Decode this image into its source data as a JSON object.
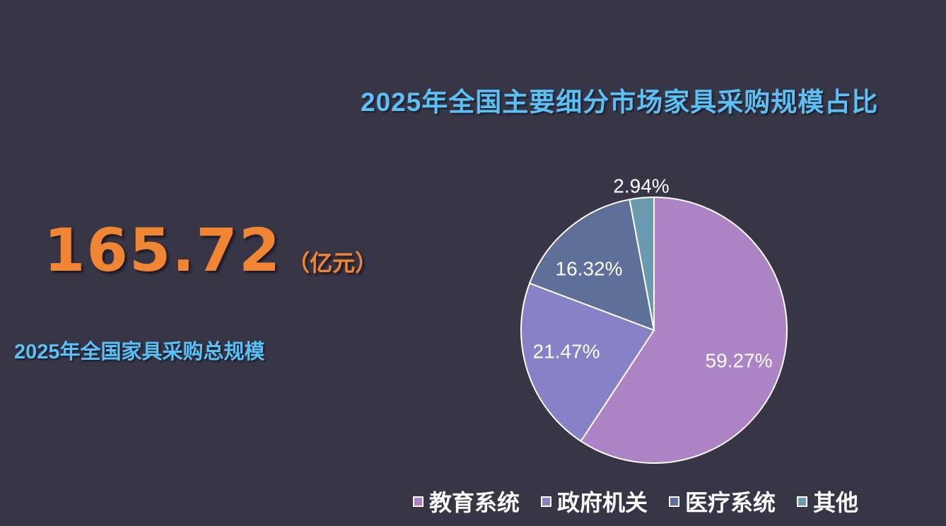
{
  "chart_title": "2025年全国主要细分市场家具采购规模占比",
  "total": {
    "value": "165.72",
    "unit": "（亿元）",
    "label": "2025年全国家具采购总规模"
  },
  "colors": {
    "background": "#383546",
    "title": "#5BC0F5",
    "highlight": "#F08533"
  },
  "chart_data": {
    "type": "pie",
    "title": "2025年全国主要细分市场家具采购规模占比",
    "categories": [
      "教育系统",
      "政府机关",
      "医疗系统",
      "其他"
    ],
    "values": [
      59.27,
      21.47,
      16.32,
      2.94
    ],
    "labels": [
      "59.27%",
      "21.47%",
      "16.32%",
      "2.94%"
    ],
    "colors": [
      "#AC84C6",
      "#8782C8",
      "#5E6F99",
      "#6A9AB0"
    ],
    "legend_position": "bottom",
    "unit": "%"
  },
  "legend": [
    {
      "label": "教育系统",
      "color": "#AC84C6"
    },
    {
      "label": "政府机关",
      "color": "#8782C8"
    },
    {
      "label": "医疗系统",
      "color": "#5E6F99"
    },
    {
      "label": "其他",
      "color": "#6A9AB0"
    }
  ]
}
